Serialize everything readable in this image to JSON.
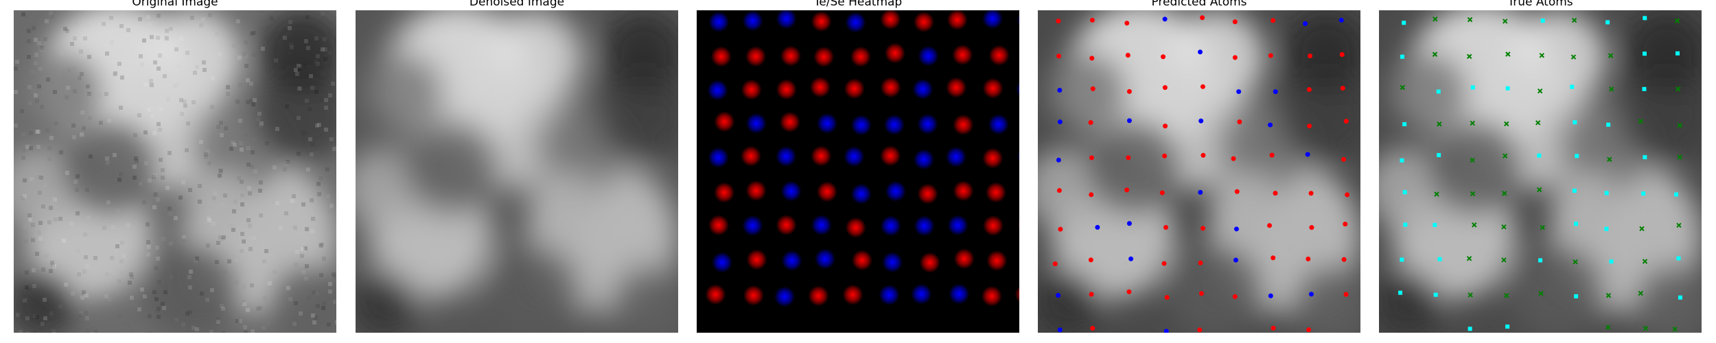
{
  "panels": [
    {
      "title": "Original Image",
      "kind": "noisy-grayscale"
    },
    {
      "title": "Denoised Image",
      "kind": "denoised-grayscale"
    },
    {
      "title": "Te/Se Heatmap",
      "kind": "heatmap"
    },
    {
      "title": "Predicted Atoms",
      "kind": "predicted-atoms"
    },
    {
      "title": "True Atoms",
      "kind": "true-atoms"
    }
  ],
  "colors": {
    "te": "#ff0000",
    "se": "#0000ff",
    "true_a": "#00ffff",
    "true_b": "#008000",
    "heat_background": "#000000"
  },
  "markers": {
    "predicted": "dot",
    "true_a": "square",
    "true_b": "x"
  }
}
